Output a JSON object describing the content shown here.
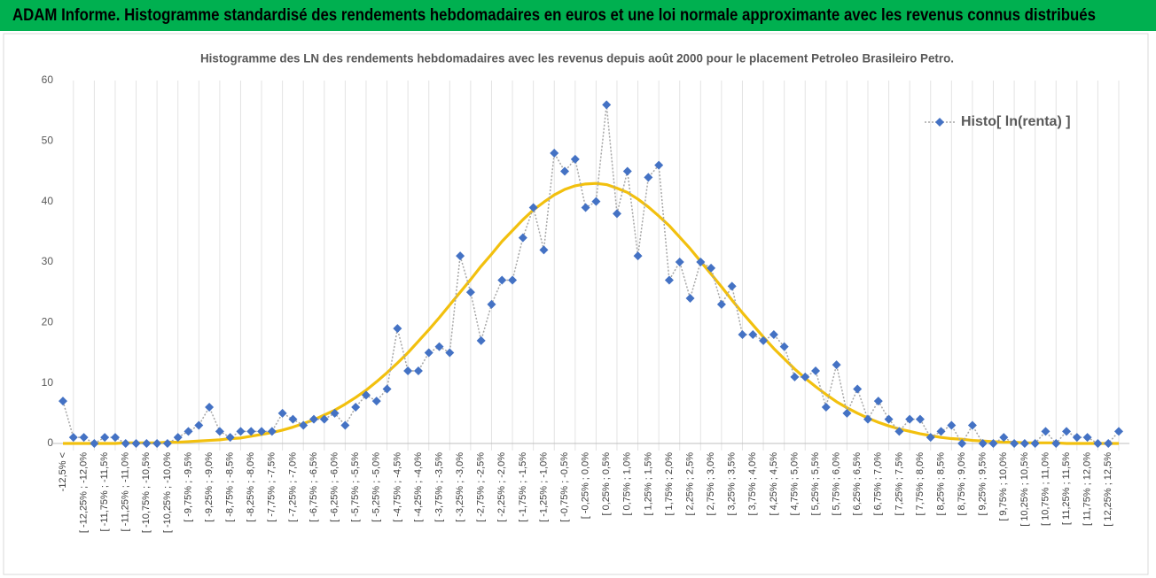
{
  "header": {
    "title": "ADAM Informe. Histogramme standardisé des rendements hebdomadaires en euros et une loi normale approximante avec les revenus connus distribués"
  },
  "chart_data": {
    "type": "line",
    "title": "Histogramme des LN des rendements hebdomadaires avec les revenus depuis août 2000 pour le placement Petroleo Brasileiro  Petro.",
    "categories": [
      "-12,5% <",
      null,
      "[ -12,25% ; -12,0%",
      null,
      "[ -11,75% ; -11,5%",
      null,
      "[ -11,25% ; -11,0%",
      null,
      "[ -10,75% ; -10,5%",
      null,
      "[ -10,25% ; -10,0%",
      null,
      "[ -9,75% ; -9,5%",
      null,
      "[ -9,25% ; -9,0%",
      null,
      "[ -8,75% ; -8,5%",
      null,
      "[ -8,25% ; -8,0%",
      null,
      "[ -7,75% ; -7,5%",
      null,
      "[ -7,25% ; -7,0%",
      null,
      "[ -6,75% ; -6,5%",
      null,
      "[ -6,25% ; -6,0%",
      null,
      "[ -5,75% ; -5,5%",
      null,
      "[ -5,25% ; -5,0%",
      null,
      "[ -4,75% ; -4,5%",
      null,
      "[ -4,25% ; -4,0%",
      null,
      "[ -3,75% ; -3,5%",
      null,
      "[ -3,25% ; -3,0%",
      null,
      "[ -2,75% ; -2,5%",
      null,
      "[ -2,25% ; -2,0%",
      null,
      "[ -1,75% ; -1,5%",
      null,
      "[ -1,25% ; -1,0%",
      null,
      "[ -0,75% ; -0,5%",
      null,
      "[ -0,25% ; 0,0%",
      null,
      "[ 0,25% ; 0,5%",
      null,
      "[ 0,75% ; 1,0%",
      null,
      "[ 1,25% ; 1,5%",
      null,
      "[ 1,75% ; 2,0%",
      null,
      "[ 2,25% ; 2,5%",
      null,
      "[ 2,75% ; 3,0%",
      null,
      "[ 3,25% ; 3,5%",
      null,
      "[ 3,75% ; 4,0%",
      null,
      "[ 4,25% ; 4,5%",
      null,
      "[ 4,75% ; 5,0%",
      null,
      "[ 5,25% ; 5,5%",
      null,
      "[ 5,75% ; 6,0%",
      null,
      "[ 6,25% ; 6,5%",
      null,
      "[ 6,75% ; 7,0%",
      null,
      "[ 7,25% ; 7,5%",
      null,
      "[ 7,75% ; 8,0%",
      null,
      "[ 8,25% ; 8,5%",
      null,
      "[ 8,75% ; 9,0%",
      null,
      "[ 9,25% ; 9,5%",
      null,
      "[ 9,75% ; 10,0%",
      null,
      "[ 10,25% ; 10,5%",
      null,
      "[ 10,75% ; 11,0%",
      null,
      "[ 11,25% ; 11,5%",
      null,
      "[ 11,75% ; 12,0%",
      null,
      "[ 12,25% ; 12,5%",
      null
    ],
    "series": [
      {
        "name": "Histo[ ln(renta) ]",
        "color": "#4472c4",
        "line_color": "#a6a6a6",
        "line_style": "dotted",
        "marker": "diamond",
        "values": [
          7,
          1,
          1,
          0,
          1,
          1,
          0,
          0,
          0,
          0,
          0,
          1,
          2,
          3,
          6,
          2,
          1,
          2,
          2,
          2,
          2,
          5,
          4,
          3,
          4,
          4,
          5,
          3,
          6,
          8,
          7,
          9,
          19,
          12,
          12,
          15,
          16,
          15,
          31,
          25,
          17,
          23,
          27,
          27,
          34,
          39,
          32,
          48,
          45,
          47,
          39,
          40,
          56,
          38,
          45,
          31,
          44,
          46,
          27,
          30,
          24,
          30,
          29,
          23,
          26,
          18,
          18,
          17,
          18,
          16,
          11,
          11,
          12,
          6,
          13,
          5,
          9,
          4,
          7,
          4,
          2,
          4,
          4,
          1,
          2,
          3,
          0,
          3,
          0,
          0,
          1,
          0,
          0,
          0,
          2,
          0,
          2,
          1,
          1,
          0,
          0,
          2
        ]
      },
      {
        "color": "#f2c00e",
        "line_style": "solid",
        "marker": "none",
        "values": [
          0,
          0,
          0,
          0,
          0,
          0,
          0.1,
          0.1,
          0.1,
          0.1,
          0.2,
          0.2,
          0.3,
          0.4,
          0.5,
          0.6,
          0.8,
          0.9,
          1.2,
          1.5,
          1.8,
          2.2,
          2.7,
          3.3,
          3.9,
          4.7,
          5.5,
          6.5,
          7.6,
          8.8,
          10.2,
          11.7,
          13.3,
          15.0,
          16.9,
          18.8,
          20.8,
          22.9,
          25.0,
          27.1,
          29.3,
          31.3,
          33.4,
          35.2,
          37.0,
          38.6,
          39.9,
          41.1,
          42.0,
          42.6,
          42.9,
          43.0,
          42.8,
          42.2,
          41.5,
          40.4,
          39.1,
          37.6,
          36.0,
          34.1,
          32.2,
          30.1,
          28.0,
          25.9,
          23.7,
          21.6,
          19.6,
          17.6,
          15.7,
          14.0,
          12.3,
          10.8,
          9.4,
          8.1,
          6.9,
          5.9,
          5.0,
          4.2,
          3.5,
          2.9,
          2.4,
          2.0,
          1.6,
          1.3,
          1.0,
          0.8,
          0.7,
          0.5,
          0.4,
          0.3,
          0.2,
          0.2,
          0.1,
          0.1,
          0.1,
          0.1,
          0,
          0,
          0,
          0,
          0,
          0
        ]
      }
    ],
    "ylim": [
      0,
      60
    ],
    "yticks": [
      0,
      10,
      20,
      30,
      40,
      50,
      60
    ],
    "grid": "x",
    "legend": "upper right"
  }
}
